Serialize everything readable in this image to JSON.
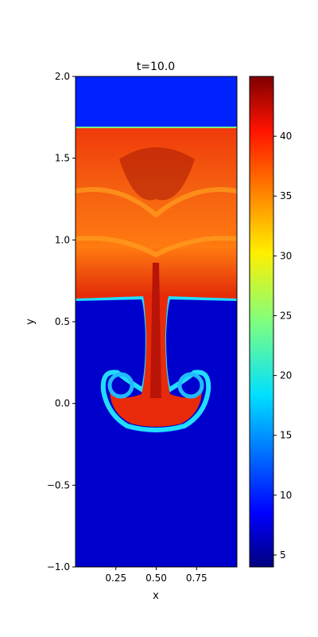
{
  "chart_data": {
    "type": "heatmap",
    "title": "t=10.0",
    "xlabel": "x",
    "ylabel": "y",
    "xlim": [
      0.0,
      1.0
    ],
    "ylim": [
      -1.0,
      2.0
    ],
    "x_ticks": [
      0.25,
      0.5,
      0.75
    ],
    "x_tick_labels": [
      "0.25",
      "0.50",
      "0.75"
    ],
    "y_ticks": [
      -1.0,
      -0.5,
      0.0,
      0.5,
      1.0,
      1.5,
      2.0
    ],
    "y_tick_labels": [
      "−1.0",
      "−0.5",
      "0.0",
      "0.5",
      "1.0",
      "1.5",
      "2.0"
    ],
    "colormap": "jet",
    "colorbar": {
      "range": [
        4,
        45
      ],
      "ticks": [
        5,
        10,
        15,
        20,
        25,
        30,
        35,
        40
      ],
      "tick_labels": [
        "5",
        "10",
        "15",
        "20",
        "25",
        "30",
        "35",
        "40"
      ]
    },
    "regions": {
      "upper_band_y": [
        1.69,
        2.0
      ],
      "upper_band_value": 8,
      "dense_layer_y": [
        0.64,
        1.69
      ],
      "dense_layer_value": 39,
      "lower_region_value": 5,
      "plume_base_y": -0.16
    },
    "interface_value": 17
  }
}
